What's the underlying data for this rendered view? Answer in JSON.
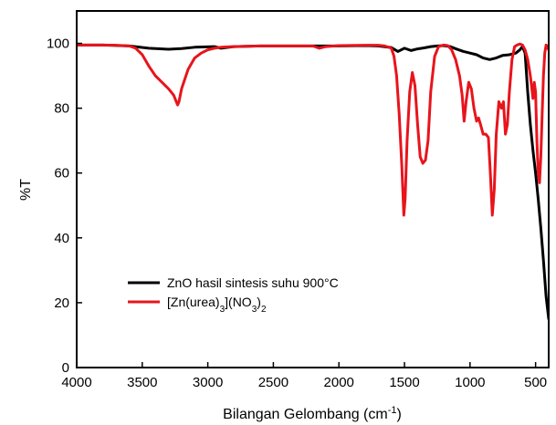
{
  "chart_data": {
    "type": "line",
    "xlabel": "Bilangan Gelombang (cm",
    "xlabel_sup": "-1",
    "xlabel_end": ")",
    "ylabel": "%T",
    "xlim": [
      4000,
      400
    ],
    "ylim": [
      0,
      110
    ],
    "x_ticks": [
      4000,
      3500,
      3000,
      2500,
      2000,
      1500,
      1000,
      500
    ],
    "y_ticks": [
      0,
      20,
      40,
      60,
      80,
      100
    ],
    "grid": false,
    "legend_position": "bottom-left",
    "series": [
      {
        "name": "ZnO hasil sintesis suhu 900°C",
        "color": "#000000",
        "x": [
          4000,
          3800,
          3600,
          3450,
          3300,
          3200,
          3100,
          2950,
          2900,
          2800,
          2600,
          2400,
          2200,
          2000,
          1800,
          1700,
          1600,
          1550,
          1500,
          1450,
          1400,
          1350,
          1300,
          1250,
          1200,
          1150,
          1100,
          1050,
          1000,
          950,
          900,
          850,
          800,
          750,
          700,
          650,
          620,
          600,
          580,
          560,
          540,
          520,
          500,
          480,
          460,
          440,
          420,
          400
        ],
        "values": [
          99.5,
          99.5,
          99.2,
          98.5,
          98.2,
          98.4,
          98.8,
          99,
          98.5,
          99,
          99.2,
          99.2,
          99.2,
          99.2,
          99.3,
          99.2,
          98.7,
          97.5,
          98.5,
          97.8,
          98.3,
          98.6,
          99,
          99.2,
          99.3,
          99,
          98.2,
          97.5,
          97,
          96.5,
          95.5,
          95,
          95.5,
          96.3,
          96.5,
          97,
          98,
          99,
          97,
          85,
          75,
          67,
          60,
          52,
          43,
          33,
          22,
          15
        ]
      },
      {
        "name": "[Zn(urea)3](NO3)2",
        "color": "#e8141c",
        "x": [
          4000,
          3800,
          3700,
          3600,
          3550,
          3500,
          3450,
          3400,
          3350,
          3300,
          3280,
          3260,
          3240,
          3230,
          3220,
          3200,
          3150,
          3100,
          3050,
          3000,
          2950,
          2900,
          2800,
          2600,
          2400,
          2200,
          2150,
          2100,
          2000,
          1800,
          1700,
          1650,
          1600,
          1580,
          1560,
          1540,
          1520,
          1505,
          1495,
          1480,
          1460,
          1440,
          1420,
          1400,
          1380,
          1360,
          1340,
          1320,
          1300,
          1270,
          1240,
          1200,
          1170,
          1140,
          1110,
          1080,
          1060,
          1045,
          1030,
          1010,
          990,
          970,
          950,
          935,
          920,
          900,
          880,
          860,
          845,
          830,
          815,
          800,
          780,
          760,
          745,
          730,
          715,
          700,
          680,
          660,
          640,
          620,
          600,
          580,
          560,
          540,
          520,
          510,
          500,
          490,
          480,
          470,
          460,
          450,
          440,
          430,
          420,
          410,
          400
        ],
        "values": [
          99.5,
          99.5,
          99.4,
          99.2,
          98.5,
          96.5,
          93,
          90,
          88,
          86,
          85,
          84,
          82,
          81,
          82,
          86,
          92,
          95.5,
          97,
          98,
          98.5,
          98.8,
          99,
          99.2,
          99.2,
          99.2,
          98.5,
          99,
          99.3,
          99.4,
          99.4,
          99.2,
          98.5,
          96,
          90,
          78,
          62,
          47,
          52,
          70,
          85,
          91,
          87,
          75,
          65,
          63,
          64,
          70,
          85,
          96,
          99,
          99.5,
          99.3,
          98,
          95,
          90,
          84,
          76,
          82,
          88,
          86,
          80,
          76,
          77,
          75,
          72,
          72,
          71,
          60,
          47,
          55,
          72,
          82,
          80,
          82,
          72,
          75,
          85,
          95,
          99,
          99.5,
          99.8,
          99.5,
          98,
          95,
          90,
          83,
          88,
          85,
          70,
          60,
          57,
          65,
          78,
          90,
          97,
          99.5,
          99,
          98
        ]
      }
    ]
  },
  "legend": {
    "item1": "ZnO hasil sintesis suhu 900°C",
    "item2_pre": "[Zn(urea)",
    "item2_sub1": "3",
    "item2_mid": "](NO",
    "item2_sub2": "3",
    "item2_mid2": ")",
    "item2_sub3": "2"
  }
}
